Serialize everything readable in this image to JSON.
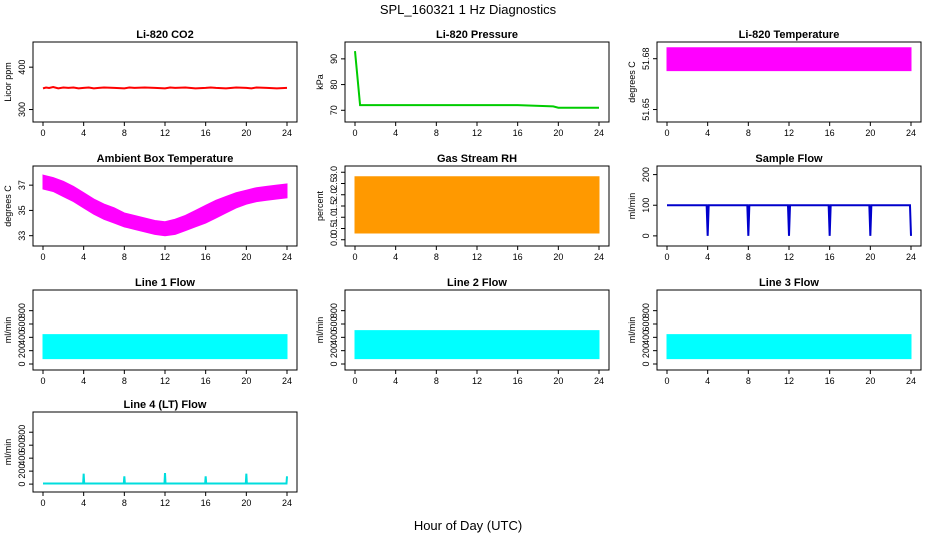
{
  "figure": {
    "title": "SPL_160321  1 Hz Diagnostics",
    "xlabel": "Hour of Day (UTC)"
  },
  "chart_data": [
    {
      "id": "co2",
      "type": "line",
      "title": "Li-820 CO2",
      "ylabel": "Licor ppm",
      "color": "#ff0000",
      "xlim": [
        0,
        24
      ],
      "ylim": [
        280,
        450
      ],
      "xticks": [
        0,
        4,
        8,
        12,
        16,
        20,
        24
      ],
      "yticks": [
        300,
        400
      ],
      "series": [
        {
          "x": [
            0,
            0.3,
            0.6,
            1,
            1.5,
            2,
            2.5,
            3,
            3.5,
            4,
            4.5,
            5,
            5.5,
            6,
            7,
            8,
            8.5,
            9,
            10,
            11,
            12,
            12.5,
            13,
            14,
            15,
            16,
            16.5,
            17,
            18,
            19,
            20,
            20.5,
            21,
            22,
            23,
            24
          ],
          "y": [
            350,
            352,
            351,
            353,
            350,
            352,
            351,
            352,
            350,
            351,
            352,
            350,
            351,
            352,
            351,
            350,
            352,
            351,
            352,
            351,
            350,
            352,
            351,
            352,
            350,
            351,
            352,
            351,
            350,
            352,
            351,
            350,
            352,
            351,
            350,
            351
          ]
        }
      ]
    },
    {
      "id": "pressure",
      "type": "line",
      "title": "Li-820 Pressure",
      "ylabel": "kPa",
      "color": "#00cc00",
      "xlim": [
        0,
        24
      ],
      "ylim": [
        67,
        95
      ],
      "xticks": [
        0,
        4,
        8,
        12,
        16,
        20,
        24
      ],
      "yticks": [
        70,
        80,
        90
      ],
      "series": [
        {
          "x": [
            0,
            0.5,
            4,
            8,
            12,
            16,
            19.5,
            20,
            24
          ],
          "y": [
            93,
            72,
            72,
            72,
            72,
            72,
            71.5,
            71,
            71
          ]
        }
      ]
    },
    {
      "id": "licor_temp",
      "type": "area",
      "title": "Li-820 Temperature",
      "ylabel": "degrees C",
      "color": "#ff00ff",
      "xlim": [
        0,
        24
      ],
      "ylim": [
        51.645,
        51.6875
      ],
      "xticks": [
        0,
        4,
        8,
        12,
        16,
        20,
        24
      ],
      "yticks": [
        51.65,
        51.68
      ],
      "ytick_labels": [
        "51.65",
        "51.68"
      ],
      "series": [
        {
          "x": [
            0,
            24
          ],
          "y_low": [
            51.673,
            51.673
          ],
          "y_high": [
            51.6865,
            51.6865
          ]
        }
      ]
    },
    {
      "id": "box_temp",
      "type": "area",
      "title": "Ambient Box Temperature",
      "ylabel": "degrees C",
      "color": "#ff00ff",
      "xlim": [
        0,
        24
      ],
      "ylim": [
        32.5,
        38.2
      ],
      "xticks": [
        0,
        4,
        8,
        12,
        16,
        20,
        24
      ],
      "yticks": [
        33,
        35,
        37
      ],
      "series": [
        {
          "x": [
            0,
            1,
            2,
            3,
            4,
            5,
            6,
            7,
            8,
            9,
            10,
            11,
            12,
            13,
            14,
            15,
            16,
            17,
            18,
            19,
            20,
            21,
            22,
            23,
            24
          ],
          "y_low": [
            36.7,
            36.5,
            36.1,
            35.7,
            35.2,
            34.7,
            34.3,
            34.0,
            33.7,
            33.5,
            33.3,
            33.1,
            33.0,
            33.1,
            33.4,
            33.7,
            34.0,
            34.4,
            34.8,
            35.2,
            35.5,
            35.7,
            35.8,
            35.9,
            36.0
          ],
          "y_high": [
            37.8,
            37.6,
            37.3,
            36.9,
            36.4,
            35.9,
            35.5,
            35.2,
            34.8,
            34.6,
            34.4,
            34.2,
            34.1,
            34.3,
            34.6,
            35.0,
            35.4,
            35.8,
            36.1,
            36.4,
            36.6,
            36.8,
            36.9,
            37.0,
            37.1
          ]
        }
      ]
    },
    {
      "id": "rh",
      "type": "area",
      "title": "Gas Stream RH",
      "ylabel": "percent",
      "color": "#ff9900",
      "xlim": [
        0,
        24
      ],
      "ylim": [
        -0.1,
        3.1
      ],
      "xticks": [
        0,
        4,
        8,
        12,
        16,
        20,
        24
      ],
      "yticks": [
        0.0,
        0.5,
        1.0,
        1.5,
        2.0,
        2.5,
        3.0
      ],
      "ytick_labels": [
        "0.0",
        "0.5",
        "1.0",
        "1.5",
        "2.0",
        "2.5",
        "3.0"
      ],
      "series": [
        {
          "x": [
            0,
            24
          ],
          "y_low": [
            0.3,
            0.3
          ],
          "y_high": [
            2.8,
            2.8
          ]
        }
      ]
    },
    {
      "id": "sample_flow",
      "type": "line",
      "title": "Sample Flow",
      "ylabel": "ml/min",
      "color": "#0000cc",
      "xlim": [
        0,
        24
      ],
      "ylim": [
        -20,
        215
      ],
      "xticks": [
        0,
        4,
        8,
        12,
        16,
        20,
        24
      ],
      "yticks": [
        0,
        100,
        200
      ],
      "series": [
        {
          "x": [
            0,
            3.9,
            4,
            4.1,
            7.9,
            8,
            8.1,
            11.9,
            12,
            12.1,
            15.9,
            16,
            16.1,
            19.9,
            20,
            20.1,
            23.9,
            24
          ],
          "y": [
            100,
            100,
            0,
            100,
            100,
            0,
            100,
            100,
            0,
            100,
            100,
            0,
            100,
            100,
            0,
            100,
            100,
            0
          ]
        }
      ]
    },
    {
      "id": "line1",
      "type": "area",
      "title": "Line 1 Flow",
      "ylabel": "ml/min",
      "color": "#00ffff",
      "xlim": [
        0,
        24
      ],
      "ylim": [
        -30,
        1050
      ],
      "xticks": [
        0,
        4,
        8,
        12,
        16,
        20,
        24
      ],
      "yticks": [
        0,
        200,
        400,
        600,
        800
      ],
      "series": [
        {
          "x": [
            0,
            24
          ],
          "y_low": [
            80,
            80
          ],
          "y_high": [
            440,
            440
          ]
        }
      ]
    },
    {
      "id": "line2",
      "type": "area",
      "title": "Line 2 Flow",
      "ylabel": "ml/min",
      "color": "#00ffff",
      "xlim": [
        0,
        24
      ],
      "ylim": [
        -30,
        1050
      ],
      "xticks": [
        0,
        4,
        8,
        12,
        16,
        20,
        24
      ],
      "yticks": [
        0,
        200,
        400,
        600,
        800
      ],
      "series": [
        {
          "x": [
            0,
            24
          ],
          "y_low": [
            80,
            80
          ],
          "y_high": [
            500,
            500
          ]
        }
      ]
    },
    {
      "id": "line3",
      "type": "area",
      "title": "Line 3 Flow",
      "ylabel": "ml/min",
      "color": "#00ffff",
      "xlim": [
        0,
        24
      ],
      "ylim": [
        -30,
        1050
      ],
      "xticks": [
        0,
        4,
        8,
        12,
        16,
        20,
        24
      ],
      "yticks": [
        0,
        200,
        400,
        600,
        800
      ],
      "series": [
        {
          "x": [
            0,
            24
          ],
          "y_low": [
            80,
            80
          ],
          "y_high": [
            440,
            440
          ]
        }
      ]
    },
    {
      "id": "line4",
      "type": "line",
      "title": "Line 4 (LT) Flow",
      "ylabel": "ml/min",
      "color": "#00dddd",
      "xlim": [
        0,
        24
      ],
      "ylim": [
        -60,
        1050
      ],
      "xticks": [
        0,
        4,
        8,
        12,
        16,
        20,
        24
      ],
      "yticks": [
        0,
        200,
        400,
        600,
        800
      ],
      "series": [
        {
          "x": [
            0,
            3.95,
            4,
            4.05,
            7.95,
            8,
            8.05,
            11.95,
            12,
            12.05,
            15.95,
            16,
            16.05,
            19.95,
            20,
            20.05,
            23.95,
            24
          ],
          "y": [
            10,
            10,
            160,
            10,
            10,
            120,
            10,
            10,
            170,
            10,
            10,
            120,
            10,
            10,
            160,
            10,
            10,
            120
          ]
        }
      ]
    }
  ]
}
